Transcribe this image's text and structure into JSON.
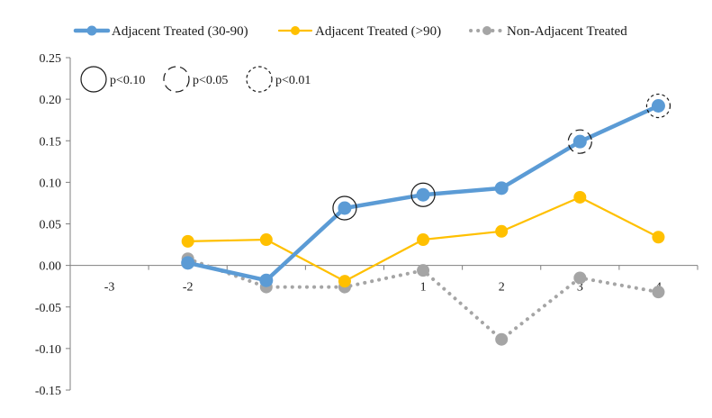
{
  "chart_data": {
    "type": "line",
    "title": "",
    "xlabel": "",
    "ylabel": "",
    "ylim": [
      -0.15,
      0.25
    ],
    "yticks": [
      "0.25",
      "0.20",
      "0.15",
      "0.10",
      "0.05",
      "0.00",
      "-0.05",
      "-0.10",
      "-0.15"
    ],
    "ytick_values": [
      0.25,
      0.2,
      0.15,
      0.1,
      0.05,
      0.0,
      -0.05,
      -0.1,
      -0.15
    ],
    "categories": [
      "-3",
      "-2",
      "-1",
      "0",
      "1",
      "2",
      "3",
      "4"
    ],
    "x_values": [
      -3,
      -2,
      -1,
      0,
      1,
      2,
      3,
      4
    ],
    "grid": false,
    "legend_placement": "top",
    "series": [
      {
        "name": "Adjacent Treated (30-90)",
        "color": "#5b9bd5",
        "style": "solid",
        "x": [
          -2,
          -1,
          0,
          1,
          2,
          3,
          4
        ],
        "values": [
          0.003,
          -0.018,
          0.069,
          0.085,
          0.093,
          0.149,
          0.192
        ]
      },
      {
        "name": "Adjacent Treated (>90)",
        "color": "#ffc000",
        "style": "solid",
        "x": [
          -2,
          -1,
          0,
          1,
          2,
          3,
          4
        ],
        "values": [
          0.029,
          0.031,
          -0.019,
          0.031,
          0.041,
          0.082,
          0.034
        ]
      },
      {
        "name": "Non-Adjacent Treated",
        "color": "#a5a5a5",
        "style": "dotted",
        "x": [
          -2,
          -1,
          0,
          1,
          2,
          3,
          4
        ],
        "values": [
          0.008,
          -0.026,
          -0.026,
          -0.006,
          -0.089,
          -0.015,
          -0.032
        ]
      }
    ],
    "significance_legend": [
      {
        "label": "p<0.10",
        "style": "solid"
      },
      {
        "label": "p<0.05",
        "style": "dashed"
      },
      {
        "label": "p<0.01",
        "style": "dotted"
      }
    ],
    "significance_marks": [
      {
        "series": 0,
        "x": 0,
        "level": "p<0.10"
      },
      {
        "series": 0,
        "x": 1,
        "level": "p<0.10"
      },
      {
        "series": 0,
        "x": 3,
        "level": "p<0.05"
      },
      {
        "series": 0,
        "x": 4,
        "level": "p<0.01"
      }
    ]
  }
}
